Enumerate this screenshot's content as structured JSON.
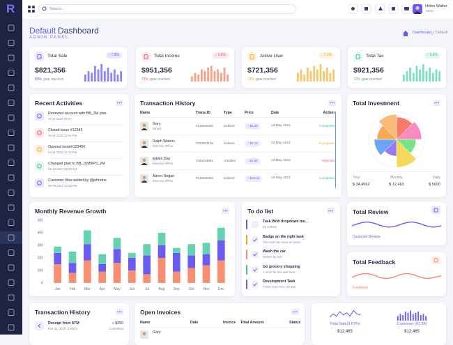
{
  "sidebar": {
    "logo": "R"
  },
  "topbar": {
    "search_placeholder": "Search...",
    "user_name": "Helen Walter",
    "user_role": "Admin"
  },
  "header": {
    "title_accent": "Default",
    "title": "Dashboard",
    "subtitle": "ADMIN PANEL",
    "breadcrumb": [
      "Dashboard",
      "Default"
    ]
  },
  "stat_cards": [
    {
      "label": "Total Sale",
      "change": "↑ 7.5%",
      "change_color": "#6658f2",
      "value": "$821,356",
      "goal_pct": "80%",
      "goal_text": "goal reached",
      "color": "#8e83f8",
      "ylim": [
        0,
        10
      ],
      "bars": [
        4,
        6,
        5,
        9,
        7,
        10,
        6,
        8,
        5,
        7,
        4,
        6
      ]
    },
    {
      "label": "Total Income",
      "change": "↓ 6.9%",
      "change_color": "#f4566b",
      "value": "$951,356",
      "goal_pct": "75%",
      "goal_text": "goal reached",
      "color": "#f8a288",
      "ylim": [
        0,
        10
      ],
      "bars": [
        3,
        5,
        4,
        7,
        6,
        8,
        9,
        6,
        7,
        5,
        8,
        4
      ]
    },
    {
      "label": "Active User",
      "change": "↑ 7.1%",
      "change_color": "#f5a623",
      "value": "$721,356",
      "goal_pct": "74%",
      "goal_text": "goal reached",
      "color": "#f7c86b",
      "ylim": [
        0,
        10
      ],
      "bars": [
        5,
        7,
        4,
        8,
        6,
        9,
        7,
        10,
        6,
        8,
        5,
        7
      ]
    },
    {
      "label": "Total Tax",
      "change": "↑ 6.9%",
      "change_color": "#3cc196",
      "value": "$921,356",
      "goal_pct": "70%",
      "goal_text": "goal reached",
      "color": "#7ee0c1",
      "ylim": [
        0,
        10
      ],
      "bars": [
        4,
        6,
        8,
        5,
        9,
        7,
        10,
        6,
        8,
        5,
        7,
        6
      ]
    }
  ],
  "recent_activities": {
    "title": "Recent Activities",
    "items": [
      {
        "text": "Renewed account with BB_2M plan",
        "time": "26-11-2018 09:47",
        "color": "#6658f2"
      },
      {
        "text": "Closed issue #12345",
        "time": "26-11-2018 12:04 PM",
        "color": "#f4566b"
      },
      {
        "text": "Opened issue#123456",
        "time": "24-11-2018 15:10 PM",
        "color": "#f5a623"
      },
      {
        "text": "Changed plan to BB_10MBPS_2M",
        "time": "01-12-2017 05:22 AM",
        "color": "#3cc196"
      },
      {
        "text": "Customer Was added by @johndoe",
        "time": "06-09-2017 12:36 PM",
        "color": "#6658f2"
      }
    ]
  },
  "transactions": {
    "title": "Transaction History",
    "columns": [
      "Name",
      "Trans.ID",
      "Type",
      "Price",
      "Date",
      "Action"
    ],
    "rows": [
      {
        "name": "Gary",
        "sub": "Ninjas",
        "id": "#125535350",
        "type": "Debited",
        "price": "↑ $5.20",
        "date": "12 May 2022",
        "status": "Completed",
        "status_color": "#3cc196"
      },
      {
        "name": "Ralph Waters",
        "sub": "Moscow Office",
        "id": "#253654186",
        "type": "Debited",
        "price": "↑ $2.12",
        "date": "12 May 2022",
        "status": "In progress",
        "status_color": "#f5a623"
      },
      {
        "name": "Edwin Day",
        "sub": "Moscow Office",
        "id": "#356254681",
        "type": "Credited",
        "price": "↑ $2.80",
        "date": "12 May 2022",
        "status": "Rejected",
        "status_color": "#f4566b"
      },
      {
        "name": "Aaron Hogan",
        "sub": "Moscow Office",
        "id": "#125535350",
        "type": "Debited",
        "price": "↑ $15.22",
        "date": "12 May 2022",
        "status": "Completed",
        "status_color": "#3cc196"
      }
    ]
  },
  "investment": {
    "title": "Total Investment",
    "chart": {
      "type": "polar-area",
      "rlim": [
        0,
        10
      ],
      "values": [
        8,
        9,
        7,
        10,
        6,
        8,
        7,
        9
      ],
      "colors": [
        "#f86a5a",
        "#f77eb9",
        "#66e07a",
        "#f5d547",
        "#8a6cf0",
        "#5b9bf5",
        "#f9a03f",
        "#f7b267"
      ]
    },
    "totals": [
      {
        "label": "Total",
        "value": "$ 34,4562"
      },
      {
        "label": "Monthly",
        "value": "$ 12,463"
      },
      {
        "label": "Daily",
        "value": "$ 5000"
      }
    ]
  },
  "revenue": {
    "title": "Monthly Revenue Growth",
    "type": "stacked-bar",
    "categories": [
      "Jan",
      "Feb",
      "Mar",
      "Apr",
      "May",
      "Jun",
      "Jul",
      "Aug",
      "Sep",
      "Oct",
      "Nov",
      "Dec"
    ],
    "ylim": [
      0,
      500
    ],
    "yticks": [
      0,
      100,
      200,
      300,
      400,
      500
    ],
    "grid": true,
    "series": [
      {
        "color": "#f98e72",
        "values": [
          150,
          80,
          180,
          90,
          160,
          100,
          70,
          200,
          90,
          120,
          140,
          180
        ]
      },
      {
        "color": "#6b5cf1",
        "values": [
          90,
          80,
          130,
          60,
          110,
          100,
          150,
          100,
          150,
          100,
          90,
          160
        ]
      },
      {
        "color": "#62d2b0",
        "values": [
          50,
          90,
          110,
          80,
          90,
          40,
          90,
          100,
          40,
          90,
          90,
          100
        ]
      }
    ]
  },
  "todo": {
    "title": "To do list",
    "items": [
      {
        "text": "Task With dropdown me...",
        "sub": "By Johnny",
        "color": "#6658f2",
        "done": false
      },
      {
        "text": "Badge on the right task",
        "sub": "This task has show on hover...",
        "color": "#f5a623",
        "done": true
      },
      {
        "text": "Wash the car",
        "sub": "Written by bob",
        "color": "#f98e72",
        "done": true
      },
      {
        "text": "Go grocery shopping",
        "sub": "A short for this task here",
        "color": "#3cc196",
        "done": true
      },
      {
        "text": "Development Task",
        "sub": "Finish react from rsli app",
        "color": "#6658f2",
        "done": true
      }
    ]
  },
  "review": {
    "title": "Total Review",
    "caption": "Customer Review",
    "color": "#6658f2",
    "ylim": [
      0,
      10
    ],
    "values": [
      5,
      7,
      8,
      7,
      5,
      4,
      5,
      7,
      8,
      7,
      5,
      4,
      5
    ]
  },
  "feedback": {
    "title": "Total Feedback",
    "caption": "Feedback",
    "color": "#f5876a",
    "ylim": [
      0,
      10
    ],
    "values": [
      4,
      6,
      7,
      6,
      4,
      3,
      4,
      6,
      7,
      6,
      4,
      3,
      4,
      5
    ]
  },
  "transactions_small": {
    "title": "Transaction History",
    "item": {
      "text": "Receipt from ATM",
      "time": "Mar 21, 2019, 3:30pm",
      "amount": "+ $250",
      "status": "Completed"
    }
  },
  "invoices": {
    "title": "Open Invoices",
    "columns": [
      "Name",
      "Date",
      "Invoice",
      "Total Amount",
      "Status"
    ],
    "rows": [
      {
        "name": "Gary"
      }
    ]
  },
  "summary": [
    {
      "label": "Total Sale(3.67%)",
      "value": "$12,465",
      "kind": "line",
      "color": "#6658f2",
      "ylim": [
        0,
        10
      ],
      "values": [
        3,
        6,
        4,
        8,
        5,
        7,
        4,
        9,
        6,
        5
      ]
    },
    {
      "label": "Customer (01.56)",
      "value": "$12,465",
      "kind": "bars",
      "color": "#6658f2",
      "ylim": [
        0,
        10
      ],
      "values": [
        4,
        6,
        5,
        8,
        7,
        9,
        6,
        7,
        8,
        5,
        6,
        4
      ]
    }
  ]
}
